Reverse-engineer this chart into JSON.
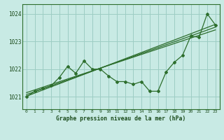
{
  "title": "Graphe pression niveau de la mer (hPa)",
  "bg_color": "#c8eae4",
  "grid_color": "#9dcdc4",
  "line_color": "#2d6e2d",
  "text_color": "#1a4a1a",
  "xlim": [
    -0.5,
    23.5
  ],
  "ylim": [
    1020.55,
    1024.35
  ],
  "yticks": [
    1021,
    1022,
    1023,
    1024
  ],
  "xtick_labels": [
    "0",
    "1",
    "2",
    "3",
    "4",
    "5",
    "6",
    "7",
    "8",
    "9",
    "10",
    "11",
    "12",
    "13",
    "14",
    "15",
    "16",
    "17",
    "18",
    "19",
    "20",
    "21",
    "22",
    "23"
  ],
  "main_series": [
    1021.0,
    1021.2,
    1021.3,
    1021.4,
    1021.7,
    1022.1,
    1021.85,
    1022.3,
    1022.0,
    1022.0,
    1021.75,
    1021.55,
    1021.55,
    1021.45,
    1021.55,
    1021.2,
    1021.2,
    1021.9,
    1022.25,
    1022.5,
    1023.2,
    1023.15,
    1024.0,
    1023.6
  ],
  "trend_line1": {
    "x": [
      0,
      23
    ],
    "y": [
      1021.02,
      1023.62
    ]
  },
  "trend_line2": {
    "x": [
      0,
      23
    ],
    "y": [
      1021.08,
      1023.52
    ]
  },
  "trend_line3": {
    "x": [
      0,
      23
    ],
    "y": [
      1021.15,
      1023.42
    ]
  }
}
